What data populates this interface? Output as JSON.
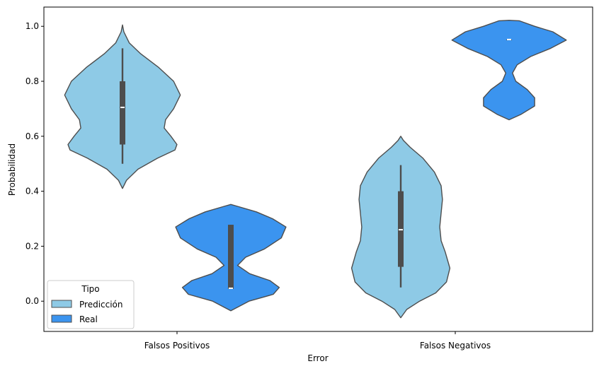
{
  "chart_data": {
    "type": "violin",
    "title": "",
    "xlabel": "Error",
    "ylabel": "Probabilidad",
    "categories": [
      "Falsos Positivos",
      "Falsos Negativos"
    ],
    "ylim": [
      -0.11,
      1.07
    ],
    "yticks": [
      "0.0",
      "0.2",
      "0.4",
      "0.6",
      "0.8",
      "1.0"
    ],
    "grid": false,
    "legend": {
      "title": "Tipo",
      "position": "bottom-left"
    },
    "series": [
      {
        "name": "Predicción",
        "color": "#8ecae6",
        "violins": [
          {
            "category": "Falsos Positivos",
            "q1": 0.57,
            "median": 0.705,
            "q3": 0.8,
            "whisker_low": 0.5,
            "whisker_high": 0.92,
            "profile": [
              [
                0.41,
                0.0
              ],
              [
                0.44,
                0.06
              ],
              [
                0.48,
                0.23
              ],
              [
                0.52,
                0.52
              ],
              [
                0.55,
                0.78
              ],
              [
                0.57,
                0.81
              ],
              [
                0.6,
                0.72
              ],
              [
                0.63,
                0.62
              ],
              [
                0.66,
                0.64
              ],
              [
                0.7,
                0.76
              ],
              [
                0.75,
                0.86
              ],
              [
                0.8,
                0.76
              ],
              [
                0.85,
                0.54
              ],
              [
                0.9,
                0.27
              ],
              [
                0.94,
                0.1
              ],
              [
                0.98,
                0.02
              ],
              [
                1.005,
                0.0
              ]
            ]
          },
          {
            "category": "Falsos Negativos",
            "q1": 0.125,
            "median": 0.26,
            "q3": 0.4,
            "whisker_low": 0.05,
            "whisker_high": 0.495,
            "profile": [
              [
                -0.06,
                0.0
              ],
              [
                -0.03,
                0.09
              ],
              [
                0.0,
                0.28
              ],
              [
                0.03,
                0.52
              ],
              [
                0.07,
                0.68
              ],
              [
                0.12,
                0.73
              ],
              [
                0.18,
                0.66
              ],
              [
                0.22,
                0.6
              ],
              [
                0.27,
                0.58
              ],
              [
                0.32,
                0.6
              ],
              [
                0.37,
                0.62
              ],
              [
                0.42,
                0.6
              ],
              [
                0.47,
                0.5
              ],
              [
                0.52,
                0.33
              ],
              [
                0.56,
                0.14
              ],
              [
                0.585,
                0.04
              ],
              [
                0.6,
                0.0
              ]
            ]
          }
        ]
      },
      {
        "name": "Real",
        "color": "#3b94ef",
        "violins": [
          {
            "category": "Falsos Positivos",
            "q1": 0.045,
            "median": 0.047,
            "q3": 0.278,
            "whisker_low": 0.045,
            "whisker_high": 0.278,
            "profile": [
              [
                -0.035,
                0.0
              ],
              [
                0.0,
                0.27
              ],
              [
                0.025,
                0.63
              ],
              [
                0.05,
                0.72
              ],
              [
                0.075,
                0.58
              ],
              [
                0.1,
                0.28
              ],
              [
                0.13,
                0.1
              ],
              [
                0.16,
                0.22
              ],
              [
                0.19,
                0.5
              ],
              [
                0.23,
                0.75
              ],
              [
                0.27,
                0.82
              ],
              [
                0.3,
                0.62
              ],
              [
                0.325,
                0.38
              ],
              [
                0.345,
                0.1
              ],
              [
                0.352,
                0.0
              ]
            ]
          },
          {
            "category": "Falsos Negativos",
            "q1": 0.952,
            "median": 0.952,
            "q3": 0.952,
            "whisker_low": 0.952,
            "whisker_high": 0.952,
            "profile": [
              [
                0.66,
                0.0
              ],
              [
                0.68,
                0.18
              ],
              [
                0.71,
                0.38
              ],
              [
                0.74,
                0.38
              ],
              [
                0.77,
                0.27
              ],
              [
                0.8,
                0.1
              ],
              [
                0.83,
                0.05
              ],
              [
                0.86,
                0.12
              ],
              [
                0.89,
                0.32
              ],
              [
                0.92,
                0.62
              ],
              [
                0.95,
                0.85
              ],
              [
                0.98,
                0.65
              ],
              [
                1.0,
                0.38
              ],
              [
                1.02,
                0.15
              ],
              [
                1.022,
                0.0
              ]
            ]
          }
        ]
      }
    ]
  }
}
